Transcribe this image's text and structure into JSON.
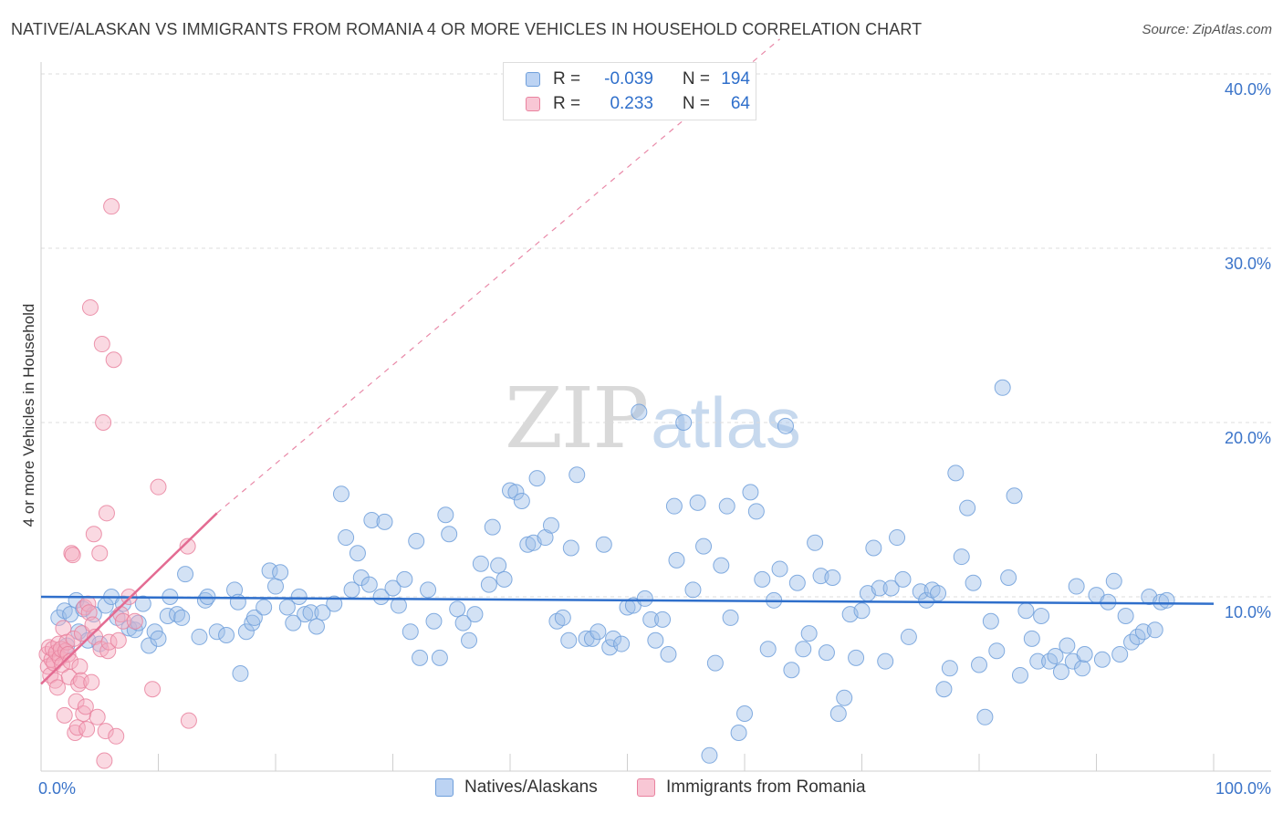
{
  "title": "NATIVE/ALASKAN VS IMMIGRANTS FROM ROMANIA 4 OR MORE VEHICLES IN HOUSEHOLD CORRELATION CHART",
  "source": "Source: ZipAtlas.com",
  "watermark": {
    "zip": "ZIP",
    "atlas": "atlas"
  },
  "colors": {
    "blue": "#9dbfe9",
    "blue_stroke": "#6f9fdb",
    "blue_line": "#2f6fcb",
    "pink": "#f4aabf",
    "pink_stroke": "#e9829f",
    "pink_line": "#e36b92",
    "axis_text": "#3b74c9"
  },
  "legend": {
    "series": [
      {
        "name": "Natives/Alaskans",
        "r_label": "R =",
        "r_value": "-0.039",
        "n_label": "N =",
        "n_value": "194"
      },
      {
        "name": "Immigrants from Romania",
        "r_label": "R =",
        "r_value": "0.233",
        "n_label": "N =",
        "n_value": "64"
      }
    ]
  },
  "chart_data": {
    "type": "scatter",
    "title": "NATIVE/ALASKAN VS IMMIGRANTS FROM ROMANIA 4 OR MORE VEHICLES IN HOUSEHOLD CORRELATION CHART",
    "xlabel": "",
    "ylabel": "4 or more Vehicles in Household",
    "xlim": [
      0,
      100
    ],
    "ylim": [
      0,
      42
    ],
    "x_tick_labels": [
      "0.0%",
      "100.0%"
    ],
    "y_tick_labels": [
      "10.0%",
      "20.0%",
      "30.0%",
      "40.0%"
    ],
    "y_ticks": [
      10,
      20,
      30,
      40
    ],
    "series": [
      {
        "name": "Natives/Alaskans",
        "trend": {
          "x": [
            0,
            100
          ],
          "y": [
            10.0,
            9.6
          ],
          "style": "solid"
        },
        "points": [
          [
            1.5,
            8.8
          ],
          [
            2,
            9.2
          ],
          [
            2.2,
            7.2
          ],
          [
            2.5,
            9.0
          ],
          [
            3,
            9.8
          ],
          [
            3.2,
            8.0
          ],
          [
            3.6,
            9.3
          ],
          [
            4,
            7.5
          ],
          [
            4.5,
            9.0
          ],
          [
            5,
            7.3
          ],
          [
            5.5,
            9.5
          ],
          [
            6,
            10.0
          ],
          [
            6.5,
            8.8
          ],
          [
            7,
            9.6
          ],
          [
            7.5,
            8.2
          ],
          [
            8,
            8.1
          ],
          [
            8.3,
            8.5
          ],
          [
            8.7,
            9.6
          ],
          [
            9.2,
            7.2
          ],
          [
            9.7,
            8.0
          ],
          [
            10,
            7.6
          ],
          [
            10.8,
            8.9
          ],
          [
            11,
            10.0
          ],
          [
            11.6,
            9.0
          ],
          [
            12,
            8.8
          ],
          [
            12.3,
            11.3
          ],
          [
            13.5,
            7.7
          ],
          [
            14,
            9.8
          ],
          [
            14.2,
            10.0
          ],
          [
            15,
            8.0
          ],
          [
            15.8,
            7.8
          ],
          [
            16.5,
            10.4
          ],
          [
            16.8,
            9.7
          ],
          [
            17,
            5.6
          ],
          [
            17.5,
            8.0
          ],
          [
            18,
            8.5
          ],
          [
            18.2,
            8.8
          ],
          [
            19,
            9.4
          ],
          [
            19.5,
            11.5
          ],
          [
            20,
            10.6
          ],
          [
            20.4,
            11.4
          ],
          [
            21,
            9.4
          ],
          [
            21.5,
            8.5
          ],
          [
            22,
            10.0
          ],
          [
            22.5,
            9.0
          ],
          [
            23,
            9.1
          ],
          [
            23.5,
            8.3
          ],
          [
            24,
            9.1
          ],
          [
            25,
            9.6
          ],
          [
            25.6,
            15.9
          ],
          [
            26,
            13.4
          ],
          [
            26.5,
            10.4
          ],
          [
            27,
            12.5
          ],
          [
            27.3,
            11.1
          ],
          [
            28,
            10.7
          ],
          [
            28.2,
            14.4
          ],
          [
            29,
            10.0
          ],
          [
            29.3,
            14.3
          ],
          [
            30,
            10.5
          ],
          [
            30.5,
            9.5
          ],
          [
            31,
            11.0
          ],
          [
            31.5,
            8.0
          ],
          [
            32,
            13.2
          ],
          [
            32.3,
            6.5
          ],
          [
            33,
            10.4
          ],
          [
            33.5,
            8.6
          ],
          [
            34,
            6.5
          ],
          [
            34.5,
            14.7
          ],
          [
            34.8,
            13.6
          ],
          [
            35.5,
            9.3
          ],
          [
            36,
            8.5
          ],
          [
            36.5,
            7.5
          ],
          [
            37,
            9.0
          ],
          [
            37.5,
            11.9
          ],
          [
            38.2,
            10.7
          ],
          [
            38.5,
            14.0
          ],
          [
            39,
            11.8
          ],
          [
            39.5,
            11.0
          ],
          [
            40,
            16.1
          ],
          [
            40.5,
            16.0
          ],
          [
            41,
            15.5
          ],
          [
            41.5,
            13.0
          ],
          [
            42,
            13.1
          ],
          [
            42.3,
            16.8
          ],
          [
            43,
            13.4
          ],
          [
            43.5,
            14.1
          ],
          [
            44,
            8.6
          ],
          [
            44.5,
            8.8
          ],
          [
            45,
            7.5
          ],
          [
            45.2,
            12.8
          ],
          [
            45.7,
            17.0
          ],
          [
            46.5,
            7.6
          ],
          [
            47,
            7.6
          ],
          [
            47.5,
            8.0
          ],
          [
            48,
            13.0
          ],
          [
            48.5,
            7.1
          ],
          [
            48.8,
            7.6
          ],
          [
            49.5,
            7.3
          ],
          [
            50,
            9.4
          ],
          [
            50.5,
            9.5
          ],
          [
            51,
            20.6
          ],
          [
            51.5,
            9.9
          ],
          [
            52,
            8.7
          ],
          [
            52.4,
            7.5
          ],
          [
            53,
            8.7
          ],
          [
            53.5,
            6.7
          ],
          [
            54,
            15.2
          ],
          [
            54.2,
            12.1
          ],
          [
            54.8,
            20.0
          ],
          [
            55.6,
            10.4
          ],
          [
            56,
            15.4
          ],
          [
            56.5,
            12.9
          ],
          [
            57,
            0.9
          ],
          [
            57.5,
            6.2
          ],
          [
            58,
            11.8
          ],
          [
            58.5,
            15.2
          ],
          [
            58.8,
            8.8
          ],
          [
            59.5,
            2.2
          ],
          [
            60,
            3.3
          ],
          [
            60.5,
            16.0
          ],
          [
            61,
            14.9
          ],
          [
            61.5,
            11.0
          ],
          [
            62,
            7.0
          ],
          [
            62.5,
            9.8
          ],
          [
            63,
            11.6
          ],
          [
            63.5,
            19.8
          ],
          [
            64,
            5.8
          ],
          [
            64.5,
            10.8
          ],
          [
            65,
            7.0
          ],
          [
            65.5,
            7.9
          ],
          [
            66,
            13.1
          ],
          [
            66.5,
            11.2
          ],
          [
            67,
            6.8
          ],
          [
            67.5,
            11.1
          ],
          [
            68,
            3.3
          ],
          [
            68.5,
            4.2
          ],
          [
            69,
            9.0
          ],
          [
            69.5,
            6.5
          ],
          [
            70,
            9.2
          ],
          [
            70.5,
            10.2
          ],
          [
            71,
            12.8
          ],
          [
            71.5,
            10.5
          ],
          [
            72,
            6.3
          ],
          [
            72.5,
            10.5
          ],
          [
            73,
            13.4
          ],
          [
            73.5,
            11.0
          ],
          [
            74,
            7.7
          ],
          [
            75,
            10.3
          ],
          [
            75.5,
            9.8
          ],
          [
            76,
            10.4
          ],
          [
            76.5,
            10.2
          ],
          [
            77,
            4.7
          ],
          [
            77.5,
            5.9
          ],
          [
            78,
            17.1
          ],
          [
            78.5,
            12.3
          ],
          [
            79,
            15.1
          ],
          [
            79.5,
            10.8
          ],
          [
            80,
            6.1
          ],
          [
            80.5,
            3.1
          ],
          [
            81,
            8.6
          ],
          [
            81.5,
            6.9
          ],
          [
            82,
            22.0
          ],
          [
            82.5,
            11.1
          ],
          [
            83,
            15.8
          ],
          [
            83.5,
            5.5
          ],
          [
            84,
            9.2
          ],
          [
            84.5,
            7.6
          ],
          [
            85,
            6.3
          ],
          [
            85.3,
            8.9
          ],
          [
            86,
            6.3
          ],
          [
            86.5,
            6.6
          ],
          [
            87,
            5.7
          ],
          [
            87.5,
            7.2
          ],
          [
            88,
            6.3
          ],
          [
            88.3,
            10.6
          ],
          [
            88.8,
            5.9
          ],
          [
            89,
            6.7
          ],
          [
            90,
            10.1
          ],
          [
            90.5,
            6.4
          ],
          [
            91,
            9.7
          ],
          [
            91.5,
            10.9
          ],
          [
            92,
            6.7
          ],
          [
            92.5,
            8.9
          ],
          [
            93,
            7.4
          ],
          [
            93.5,
            7.7
          ],
          [
            94,
            8.0
          ],
          [
            94.5,
            10.0
          ],
          [
            95,
            8.1
          ],
          [
            95.5,
            9.7
          ],
          [
            96,
            9.8
          ]
        ]
      },
      {
        "name": "Immigrants from Romania",
        "trend": {
          "x": [
            0,
            15
          ],
          "y": [
            5.0,
            14.8
          ],
          "style": "solid",
          "extended_to": [
            63,
            42.0
          ],
          "extended_style": "dashed"
        },
        "points": [
          [
            0.5,
            6.7
          ],
          [
            0.6,
            6.0
          ],
          [
            0.7,
            7.1
          ],
          [
            0.8,
            5.5
          ],
          [
            0.9,
            6.4
          ],
          [
            1.0,
            7.0
          ],
          [
            1.1,
            6.2
          ],
          [
            1.2,
            5.2
          ],
          [
            1.3,
            6.8
          ],
          [
            1.4,
            4.8
          ],
          [
            1.5,
            7.3
          ],
          [
            1.6,
            6.5
          ],
          [
            1.7,
            7.0
          ],
          [
            1.8,
            6.1
          ],
          [
            1.9,
            8.2
          ],
          [
            2.0,
            3.2
          ],
          [
            2.1,
            6.9
          ],
          [
            2.2,
            7.4
          ],
          [
            2.3,
            6.7
          ],
          [
            2.4,
            5.4
          ],
          [
            2.5,
            6.3
          ],
          [
            2.6,
            12.5
          ],
          [
            2.7,
            12.4
          ],
          [
            2.8,
            7.6
          ],
          [
            2.9,
            2.2
          ],
          [
            3.0,
            4.0
          ],
          [
            3.1,
            2.5
          ],
          [
            3.2,
            5.0
          ],
          [
            3.3,
            6.0
          ],
          [
            3.4,
            5.2
          ],
          [
            3.5,
            7.9
          ],
          [
            3.6,
            3.3
          ],
          [
            3.7,
            9.4
          ],
          [
            3.8,
            3.7
          ],
          [
            3.9,
            2.4
          ],
          [
            4.0,
            9.6
          ],
          [
            4.1,
            9.1
          ],
          [
            4.2,
            26.6
          ],
          [
            4.3,
            5.1
          ],
          [
            4.4,
            8.4
          ],
          [
            4.5,
            13.6
          ],
          [
            4.6,
            7.7
          ],
          [
            4.8,
            3.1
          ],
          [
            5.0,
            12.5
          ],
          [
            5.1,
            7.0
          ],
          [
            5.2,
            24.5
          ],
          [
            5.3,
            20.0
          ],
          [
            5.4,
            0.6
          ],
          [
            5.5,
            2.3
          ],
          [
            5.6,
            14.8
          ],
          [
            5.7,
            6.9
          ],
          [
            5.8,
            7.4
          ],
          [
            6.0,
            32.4
          ],
          [
            6.2,
            23.6
          ],
          [
            6.4,
            2.0
          ],
          [
            6.6,
            7.5
          ],
          [
            6.8,
            9.0
          ],
          [
            7.0,
            8.6
          ],
          [
            7.5,
            10.0
          ],
          [
            8.0,
            8.6
          ],
          [
            9.5,
            4.7
          ],
          [
            10,
            16.3
          ],
          [
            12.5,
            12.9
          ],
          [
            12.6,
            2.9
          ]
        ]
      }
    ]
  },
  "bottom_legend": [
    "Natives/Alaskans",
    "Immigrants from Romania"
  ]
}
